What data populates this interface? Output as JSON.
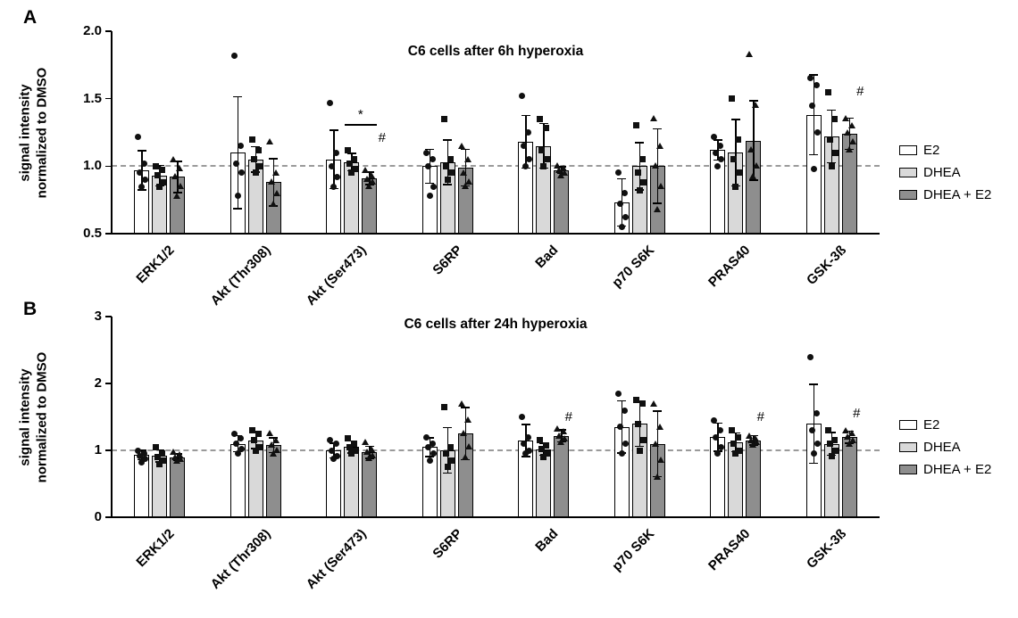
{
  "chart_data": [
    {
      "type": "bar",
      "panel": "A",
      "title": "C6 cells after 6h hyperoxia",
      "ylabel": "signal intensity\nnormalized to DMSO",
      "xlabel": "",
      "ylim": [
        0.5,
        2.0
      ],
      "yticks": [
        "2.0",
        "1.5",
        "1.0",
        "0.5"
      ],
      "ytick_values": [
        2.0,
        1.5,
        1.0,
        0.5
      ],
      "reference_line": 1.0,
      "grid": false,
      "legend_position": "right",
      "categories": [
        "ERK1/2",
        "Akt (Thr308)",
        "Akt (Ser473)",
        "S6RP",
        "Bad",
        "p70 S6K",
        "PRAS40",
        "GSK-3ß"
      ],
      "series": [
        {
          "name": "E2",
          "fill": "#ffffff",
          "marker": "circle",
          "values": [
            0.97,
            1.1,
            1.05,
            1.0,
            1.18,
            0.73,
            1.12,
            1.38
          ],
          "errors": [
            0.15,
            0.42,
            0.22,
            0.13,
            0.2,
            0.18,
            0.08,
            0.3
          ],
          "points": [
            [
              1.22,
              1.02,
              0.95,
              0.9,
              0.85
            ],
            [
              1.82,
              1.15,
              1.02,
              0.95,
              0.78
            ],
            [
              1.47,
              1.1,
              1.0,
              0.92,
              0.85
            ],
            [
              1.1,
              1.05,
              1.0,
              0.85,
              0.78
            ],
            [
              1.52,
              1.25,
              1.15,
              1.05,
              1.0
            ],
            [
              0.95,
              0.8,
              0.72,
              0.62,
              0.55
            ],
            [
              1.22,
              1.15,
              1.1,
              1.05,
              1.0
            ],
            [
              1.65,
              1.6,
              1.45,
              1.25,
              0.98
            ]
          ]
        },
        {
          "name": "DHEA",
          "fill": "#d9d9d9",
          "marker": "square",
          "values": [
            0.93,
            1.05,
            1.03,
            1.03,
            1.15,
            1.0,
            1.1,
            1.22
          ],
          "errors": [
            0.08,
            0.1,
            0.07,
            0.17,
            0.17,
            0.18,
            0.25,
            0.2
          ],
          "points": [
            [
              1.0,
              0.97,
              0.93,
              0.88,
              0.85
            ],
            [
              1.2,
              1.12,
              1.05,
              1.0,
              0.95
            ],
            [
              1.12,
              1.05,
              1.02,
              0.98,
              0.95
            ],
            [
              1.35,
              1.05,
              1.0,
              0.95,
              0.9
            ],
            [
              1.35,
              1.28,
              1.12,
              1.05,
              1.0
            ],
            [
              1.3,
              1.05,
              0.95,
              0.88,
              0.82
            ],
            [
              1.5,
              1.2,
              1.05,
              0.95,
              0.85
            ],
            [
              1.55,
              1.35,
              1.2,
              1.1,
              1.0
            ]
          ]
        },
        {
          "name": "DHEA + E2",
          "fill": "#8e8e8e",
          "marker": "triangle",
          "values": [
            0.92,
            0.88,
            0.91,
            0.99,
            0.97,
            1.0,
            1.19,
            1.24
          ],
          "errors": [
            0.12,
            0.18,
            0.05,
            0.14,
            0.03,
            0.28,
            0.3,
            0.12
          ],
          "points": [
            [
              1.05,
              0.98,
              0.92,
              0.85,
              0.78
            ],
            [
              1.18,
              0.95,
              0.88,
              0.8,
              0.72
            ],
            [
              0.97,
              0.93,
              0.9,
              0.88,
              0.85
            ],
            [
              1.15,
              1.05,
              0.95,
              0.88,
              0.85
            ],
            [
              1.0,
              0.98,
              0.97,
              0.95,
              0.93
            ],
            [
              1.35,
              1.15,
              1.0,
              0.85,
              0.68
            ],
            [
              1.83,
              1.45,
              1.12,
              1.0,
              0.92
            ],
            [
              1.35,
              1.3,
              1.25,
              1.18,
              1.12
            ]
          ]
        }
      ],
      "annotations": [
        {
          "kind": "bracket",
          "label": "*",
          "group_index": 2,
          "from_series": 1,
          "to_series": 2,
          "y": 1.31
        },
        {
          "kind": "text",
          "label": "#",
          "group_index": 2,
          "series_index": 2,
          "y": 1.21,
          "dx": 14
        },
        {
          "kind": "text",
          "label": "#",
          "group_index": 7,
          "series_index": 2,
          "y": 1.55,
          "dx": 12
        }
      ]
    },
    {
      "type": "bar",
      "panel": "B",
      "title": "C6 cells after 24h hyperoxia",
      "ylabel": "signal intensity\nnormalized to DMSO",
      "xlabel": "",
      "ylim": [
        0,
        3
      ],
      "yticks": [
        "3",
        "2",
        "1",
        "0"
      ],
      "ytick_values": [
        3,
        2,
        1,
        0
      ],
      "reference_line": 1.0,
      "grid": false,
      "legend_position": "right",
      "categories": [
        "ERK1/2",
        "Akt (Thr308)",
        "Akt (Ser473)",
        "S6RP",
        "Bad",
        "p70 S6K",
        "PRAS40",
        "GSK-3ß"
      ],
      "series": [
        {
          "name": "E2",
          "fill": "#ffffff",
          "marker": "circle",
          "values": [
            0.93,
            1.1,
            1.0,
            1.05,
            1.15,
            1.35,
            1.2,
            1.4
          ],
          "errors": [
            0.08,
            0.13,
            0.12,
            0.15,
            0.25,
            0.4,
            0.22,
            0.6
          ],
          "points": [
            [
              1.0,
              0.95,
              0.92,
              0.88,
              0.82
            ],
            [
              1.25,
              1.18,
              1.1,
              1.02,
              0.95
            ],
            [
              1.15,
              1.1,
              1.0,
              0.92,
              0.88
            ],
            [
              1.2,
              1.1,
              1.05,
              0.95,
              0.85
            ],
            [
              1.5,
              1.2,
              1.1,
              1.0,
              0.95
            ],
            [
              1.85,
              1.6,
              1.35,
              1.1,
              0.95
            ],
            [
              1.45,
              1.3,
              1.2,
              1.05,
              0.95
            ],
            [
              2.4,
              1.55,
              1.3,
              1.1,
              0.95
            ]
          ]
        },
        {
          "name": "DHEA",
          "fill": "#d9d9d9",
          "marker": "square",
          "values": [
            0.92,
            1.15,
            1.05,
            1.0,
            1.02,
            1.4,
            1.12,
            1.1
          ],
          "errors": [
            0.1,
            0.13,
            0.1,
            0.35,
            0.1,
            0.35,
            0.15,
            0.18
          ],
          "points": [
            [
              1.05,
              0.95,
              0.9,
              0.85,
              0.8
            ],
            [
              1.3,
              1.25,
              1.15,
              1.05,
              1.0
            ],
            [
              1.18,
              1.1,
              1.05,
              1.0,
              0.95
            ],
            [
              1.65,
              1.05,
              0.95,
              0.85,
              0.75
            ],
            [
              1.15,
              1.08,
              1.02,
              0.95,
              0.9
            ],
            [
              1.75,
              1.7,
              1.4,
              1.15,
              1.0
            ],
            [
              1.3,
              1.2,
              1.1,
              1.0,
              0.95
            ],
            [
              1.3,
              1.15,
              1.1,
              1.0,
              0.92
            ]
          ]
        },
        {
          "name": "DHEA + E2",
          "fill": "#8e8e8e",
          "marker": "triangle",
          "values": [
            0.9,
            1.08,
            0.97,
            1.25,
            1.22,
            1.1,
            1.15,
            1.2
          ],
          "errors": [
            0.06,
            0.12,
            0.1,
            0.4,
            0.1,
            0.5,
            0.08,
            0.1
          ],
          "points": [
            [
              0.97,
              0.93,
              0.9,
              0.87,
              0.84
            ],
            [
              1.25,
              1.15,
              1.08,
              1.0,
              0.95
            ],
            [
              1.12,
              1.02,
              0.97,
              0.92,
              0.88
            ],
            [
              1.7,
              1.45,
              1.25,
              1.05,
              0.9
            ],
            [
              1.32,
              1.28,
              1.22,
              1.18,
              1.12
            ],
            [
              1.7,
              1.35,
              1.1,
              0.85,
              0.6
            ],
            [
              1.22,
              1.18,
              1.15,
              1.12,
              1.08
            ],
            [
              1.3,
              1.25,
              1.2,
              1.15,
              1.1
            ]
          ]
        }
      ],
      "annotations": [
        {
          "kind": "text",
          "label": "#",
          "group_index": 4,
          "series_index": 2,
          "y": 1.5,
          "dx": 8
        },
        {
          "kind": "text",
          "label": "#",
          "group_index": 6,
          "series_index": 2,
          "y": 1.5,
          "dx": 8
        },
        {
          "kind": "text",
          "label": "#",
          "group_index": 7,
          "series_index": 2,
          "y": 1.55,
          "dx": 8
        }
      ]
    }
  ]
}
